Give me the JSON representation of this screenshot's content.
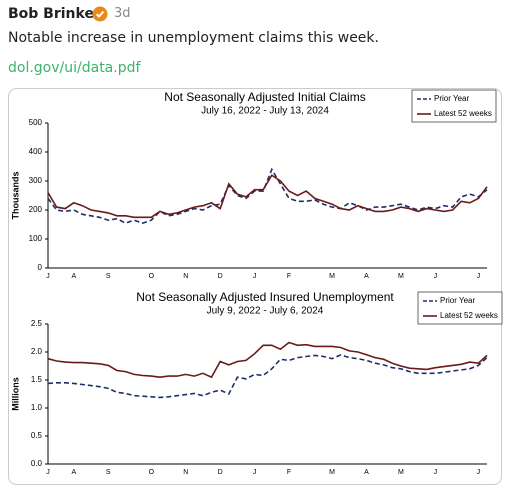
{
  "header": {
    "author": "Bob Brinker",
    "time": "3d"
  },
  "post": {
    "text": "Notable increase in unemployment claims this week.",
    "link": "dol.gov/ui/data.pdf"
  },
  "chart_data": [
    {
      "type": "line",
      "title": "Not Seasonally Adjusted Initial Claims",
      "subtitle": "July 16, 2022 - July 13, 2024",
      "y_label": "Thousands",
      "categories": [
        "J",
        null,
        null,
        "A",
        null,
        null,
        null,
        "S",
        null,
        null,
        null,
        null,
        "O",
        null,
        null,
        null,
        "N",
        null,
        null,
        null,
        "D",
        null,
        null,
        null,
        "J",
        null,
        null,
        null,
        "F",
        null,
        null,
        null,
        null,
        "M",
        null,
        null,
        null,
        "A",
        null,
        null,
        null,
        "M",
        null,
        null,
        null,
        "J",
        null,
        null,
        null,
        null,
        "J",
        null
      ],
      "series": [
        {
          "name": "Prior Year",
          "color": "#1f2f6b",
          "dashed": true,
          "values": [
            240,
            200,
            195,
            200,
            185,
            180,
            175,
            165,
            170,
            155,
            165,
            155,
            165,
            195,
            180,
            185,
            195,
            205,
            200,
            215,
            220,
            285,
            250,
            240,
            265,
            265,
            340,
            290,
            240,
            230,
            230,
            235,
            220,
            210,
            205,
            225,
            215,
            200,
            210,
            210,
            215,
            220,
            210,
            200,
            210,
            205,
            215,
            210,
            245,
            255,
            245,
            270
          ]
        },
        {
          "name": "Latest 52 weeks",
          "color": "#6b1a1a",
          "dashed": false,
          "values": [
            260,
            210,
            205,
            225,
            215,
            200,
            195,
            190,
            180,
            180,
            175,
            175,
            175,
            195,
            185,
            190,
            200,
            210,
            215,
            225,
            205,
            290,
            255,
            245,
            270,
            270,
            320,
            300,
            265,
            250,
            265,
            240,
            230,
            220,
            205,
            200,
            215,
            205,
            195,
            195,
            200,
            210,
            205,
            195,
            205,
            200,
            195,
            200,
            230,
            225,
            240,
            280
          ]
        }
      ],
      "ylim": [
        0,
        500
      ],
      "yticks": [
        0,
        100,
        200,
        300,
        400,
        500
      ],
      "grid": false,
      "legend": "upper right"
    },
    {
      "type": "line",
      "title": "Not Seasonally Adjusted Insured Unemployment",
      "subtitle": "July 9, 2022 - July 6, 2024",
      "y_label": "Millions",
      "categories": [
        "J",
        null,
        null,
        "A",
        null,
        null,
        null,
        "S",
        null,
        null,
        null,
        null,
        "O",
        null,
        null,
        null,
        "N",
        null,
        null,
        null,
        "D",
        null,
        null,
        null,
        "J",
        null,
        null,
        null,
        "F",
        null,
        null,
        null,
        null,
        "M",
        null,
        null,
        null,
        "A",
        null,
        null,
        null,
        "M",
        null,
        null,
        null,
        "J",
        null,
        null,
        null,
        null,
        "J",
        null
      ],
      "series": [
        {
          "name": "Prior Year",
          "color": "#1f2f6b",
          "dashed": true,
          "values": [
            1.44,
            1.45,
            1.45,
            1.44,
            1.42,
            1.4,
            1.38,
            1.35,
            1.28,
            1.26,
            1.22,
            1.21,
            1.2,
            1.19,
            1.2,
            1.22,
            1.24,
            1.26,
            1.22,
            1.28,
            1.32,
            1.25,
            1.55,
            1.52,
            1.6,
            1.58,
            1.7,
            1.87,
            1.85,
            1.9,
            1.92,
            1.94,
            1.92,
            1.88,
            1.95,
            1.9,
            1.88,
            1.85,
            1.8,
            1.77,
            1.72,
            1.7,
            1.65,
            1.62,
            1.62,
            1.62,
            1.64,
            1.66,
            1.68,
            1.7,
            1.76,
            1.9
          ]
        },
        {
          "name": "Latest 52 weeks",
          "color": "#6b1a1a",
          "dashed": false,
          "values": [
            1.88,
            1.84,
            1.82,
            1.81,
            1.81,
            1.8,
            1.79,
            1.76,
            1.67,
            1.65,
            1.6,
            1.58,
            1.57,
            1.55,
            1.57,
            1.57,
            1.6,
            1.57,
            1.62,
            1.55,
            1.83,
            1.77,
            1.83,
            1.85,
            1.97,
            2.12,
            2.12,
            2.05,
            2.17,
            2.12,
            2.13,
            2.1,
            2.1,
            2.1,
            2.08,
            2.02,
            2.0,
            1.95,
            1.9,
            1.87,
            1.8,
            1.75,
            1.71,
            1.7,
            1.69,
            1.72,
            1.74,
            1.76,
            1.78,
            1.82,
            1.8,
            1.94
          ]
        }
      ],
      "ylim": [
        0,
        2.5
      ],
      "yticks": [
        {
          "value": 0,
          "label": "0.0"
        },
        0.5,
        {
          "value": 1,
          "label": "1.0"
        },
        1.5,
        {
          "value": 2,
          "label": "2.0"
        },
        2.5
      ],
      "grid": false,
      "legend": "upper right"
    }
  ]
}
